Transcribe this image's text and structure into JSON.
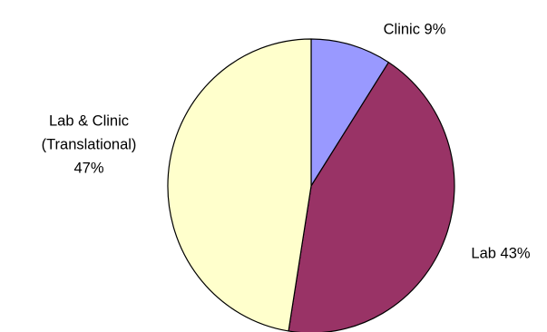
{
  "chart_data": {
    "type": "pie",
    "start": "12 o'clock",
    "direction": "clockwise",
    "slices": [
      {
        "label_lines": [
          "Clinic 9%"
        ],
        "value": 9,
        "color": "#9999ff"
      },
      {
        "label_lines": [
          "Lab 43%"
        ],
        "value": 43,
        "color": "#993366"
      },
      {
        "label_lines": [
          "Lab & Clinic",
          "(Translational)",
          "47%"
        ],
        "value": 47,
        "color": "#ffffcc"
      }
    ]
  }
}
